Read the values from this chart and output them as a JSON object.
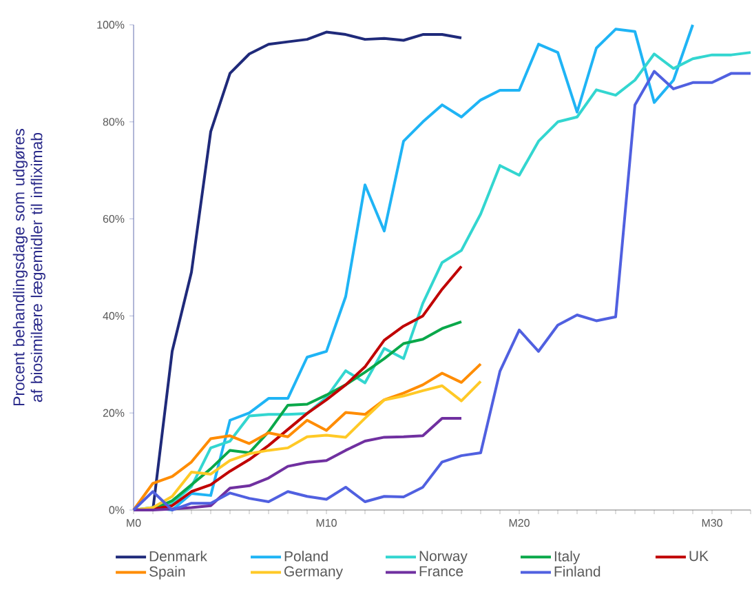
{
  "chart_data": {
    "type": "line",
    "ylabel": "Procent behandlingsdage som udgøres af biosimilære lægemidler til infliximab",
    "categories": [
      "M0",
      null,
      null,
      null,
      null,
      null,
      null,
      null,
      null,
      null,
      "M10",
      null,
      null,
      null,
      null,
      null,
      null,
      null,
      null,
      null,
      "M20",
      null,
      null,
      null,
      null,
      null,
      null,
      null,
      null,
      null,
      "M30",
      null,
      null
    ],
    "ylim": [
      0,
      100
    ],
    "yticks": [
      {
        "value": 0,
        "label": "0%"
      },
      {
        "value": 20,
        "label": "20%"
      },
      {
        "value": 40,
        "label": "40%"
      },
      {
        "value": 60,
        "label": "60%"
      },
      {
        "value": 80,
        "label": "80%"
      },
      {
        "value": 100,
        "label": "100%"
      }
    ],
    "legend": "bottom",
    "grid": false,
    "marker": "none",
    "line_style": "solid",
    "series": [
      {
        "name": "Denmark",
        "color": "#1f2a7a",
        "values": [
          0,
          0,
          32.7,
          49,
          78,
          90,
          94,
          96,
          96.5,
          97,
          98.5,
          98,
          97,
          97.2,
          96.8,
          98,
          98,
          97.3,
          null,
          null,
          null,
          null,
          null,
          null,
          null,
          null,
          null,
          null,
          null,
          null,
          null,
          null,
          null
        ]
      },
      {
        "name": "Poland",
        "color": "#1fb4f5",
        "values": [
          0,
          0.5,
          0,
          3.4,
          3.0,
          18.5,
          20,
          23,
          23,
          31.5,
          32.7,
          44,
          67,
          57.5,
          76,
          80,
          83.5,
          81,
          84.5,
          86.5,
          86.5,
          96,
          94.3,
          82,
          95.2,
          99.1,
          98.6,
          84,
          88.6,
          100,
          null,
          null,
          null
        ]
      },
      {
        "name": "Norway",
        "color": "#33d6d0",
        "values": [
          0,
          0.5,
          1.4,
          4.8,
          12.8,
          14.2,
          19.4,
          19.7,
          19.7,
          19.9,
          23.2,
          28.7,
          26.2,
          33.3,
          31.2,
          42.6,
          51,
          53.5,
          61,
          71,
          69,
          76,
          80,
          81,
          86.6,
          85.5,
          88.6,
          94,
          91,
          93,
          93.8,
          93.8,
          94.3
        ]
      },
      {
        "name": "Italy",
        "color": "#0aa84a",
        "values": [
          0,
          0.2,
          1.9,
          5.2,
          8.5,
          12.3,
          11.8,
          16.1,
          21.6,
          21.8,
          23.7,
          25.8,
          28.4,
          31.2,
          34.3,
          35.2,
          37.4,
          38.8,
          null,
          null,
          null,
          null,
          null,
          null,
          null,
          null,
          null,
          null,
          null,
          null,
          null,
          null,
          null
        ]
      },
      {
        "name": "UK",
        "color": "#c00000",
        "values": [
          0,
          0.2,
          0.9,
          3.8,
          5.2,
          8.0,
          10.4,
          13.3,
          16.6,
          19.9,
          22.7,
          25.8,
          29.5,
          35.0,
          37.9,
          40.0,
          45.5,
          50.2,
          null,
          null,
          null,
          null,
          null,
          null,
          null,
          null,
          null,
          null,
          null,
          null,
          null,
          null,
          null
        ]
      },
      {
        "name": "Spain",
        "color": "#ff8c00",
        "values": [
          0,
          5.5,
          6.9,
          9.9,
          14.7,
          15.3,
          13.7,
          15.9,
          15.1,
          18.5,
          16.4,
          20.1,
          19.7,
          22.7,
          24.1,
          25.8,
          28.2,
          26.3,
          30.1,
          null,
          null,
          null,
          null,
          null,
          null,
          null,
          null,
          null,
          null,
          null,
          null,
          null,
          null
        ]
      },
      {
        "name": "Germany",
        "color": "#ffc926",
        "values": [
          0,
          0.5,
          2.8,
          7.8,
          7.4,
          10.2,
          11.6,
          12.3,
          12.8,
          15.1,
          15.4,
          15.0,
          18.9,
          22.7,
          23.5,
          24.6,
          25.6,
          22.5,
          26.5,
          null,
          null,
          null,
          null,
          null,
          null,
          null,
          null,
          null,
          null,
          null,
          null,
          null,
          null
        ]
      },
      {
        "name": "France",
        "color": "#7030a0",
        "values": [
          0,
          0,
          0.2,
          0.5,
          0.9,
          4.5,
          5.0,
          6.6,
          9.0,
          9.8,
          10.2,
          12.3,
          14.2,
          15.0,
          15.1,
          15.3,
          18.9,
          18.9,
          null,
          null,
          null,
          null,
          null,
          null,
          null,
          null,
          null,
          null,
          null,
          null,
          null,
          null,
          null
        ]
      },
      {
        "name": "Finland",
        "color": "#5060e0",
        "values": [
          0,
          3.8,
          0,
          1.4,
          1.4,
          3.5,
          2.4,
          1.7,
          3.8,
          2.8,
          2.2,
          4.7,
          1.7,
          2.8,
          2.7,
          4.7,
          9.9,
          11.2,
          11.8,
          28.6,
          37.1,
          32.7,
          38.1,
          40.2,
          39.0,
          39.8,
          83.5,
          90.4,
          86.8,
          88.1,
          88.1,
          90.0,
          90.0
        ]
      }
    ]
  }
}
